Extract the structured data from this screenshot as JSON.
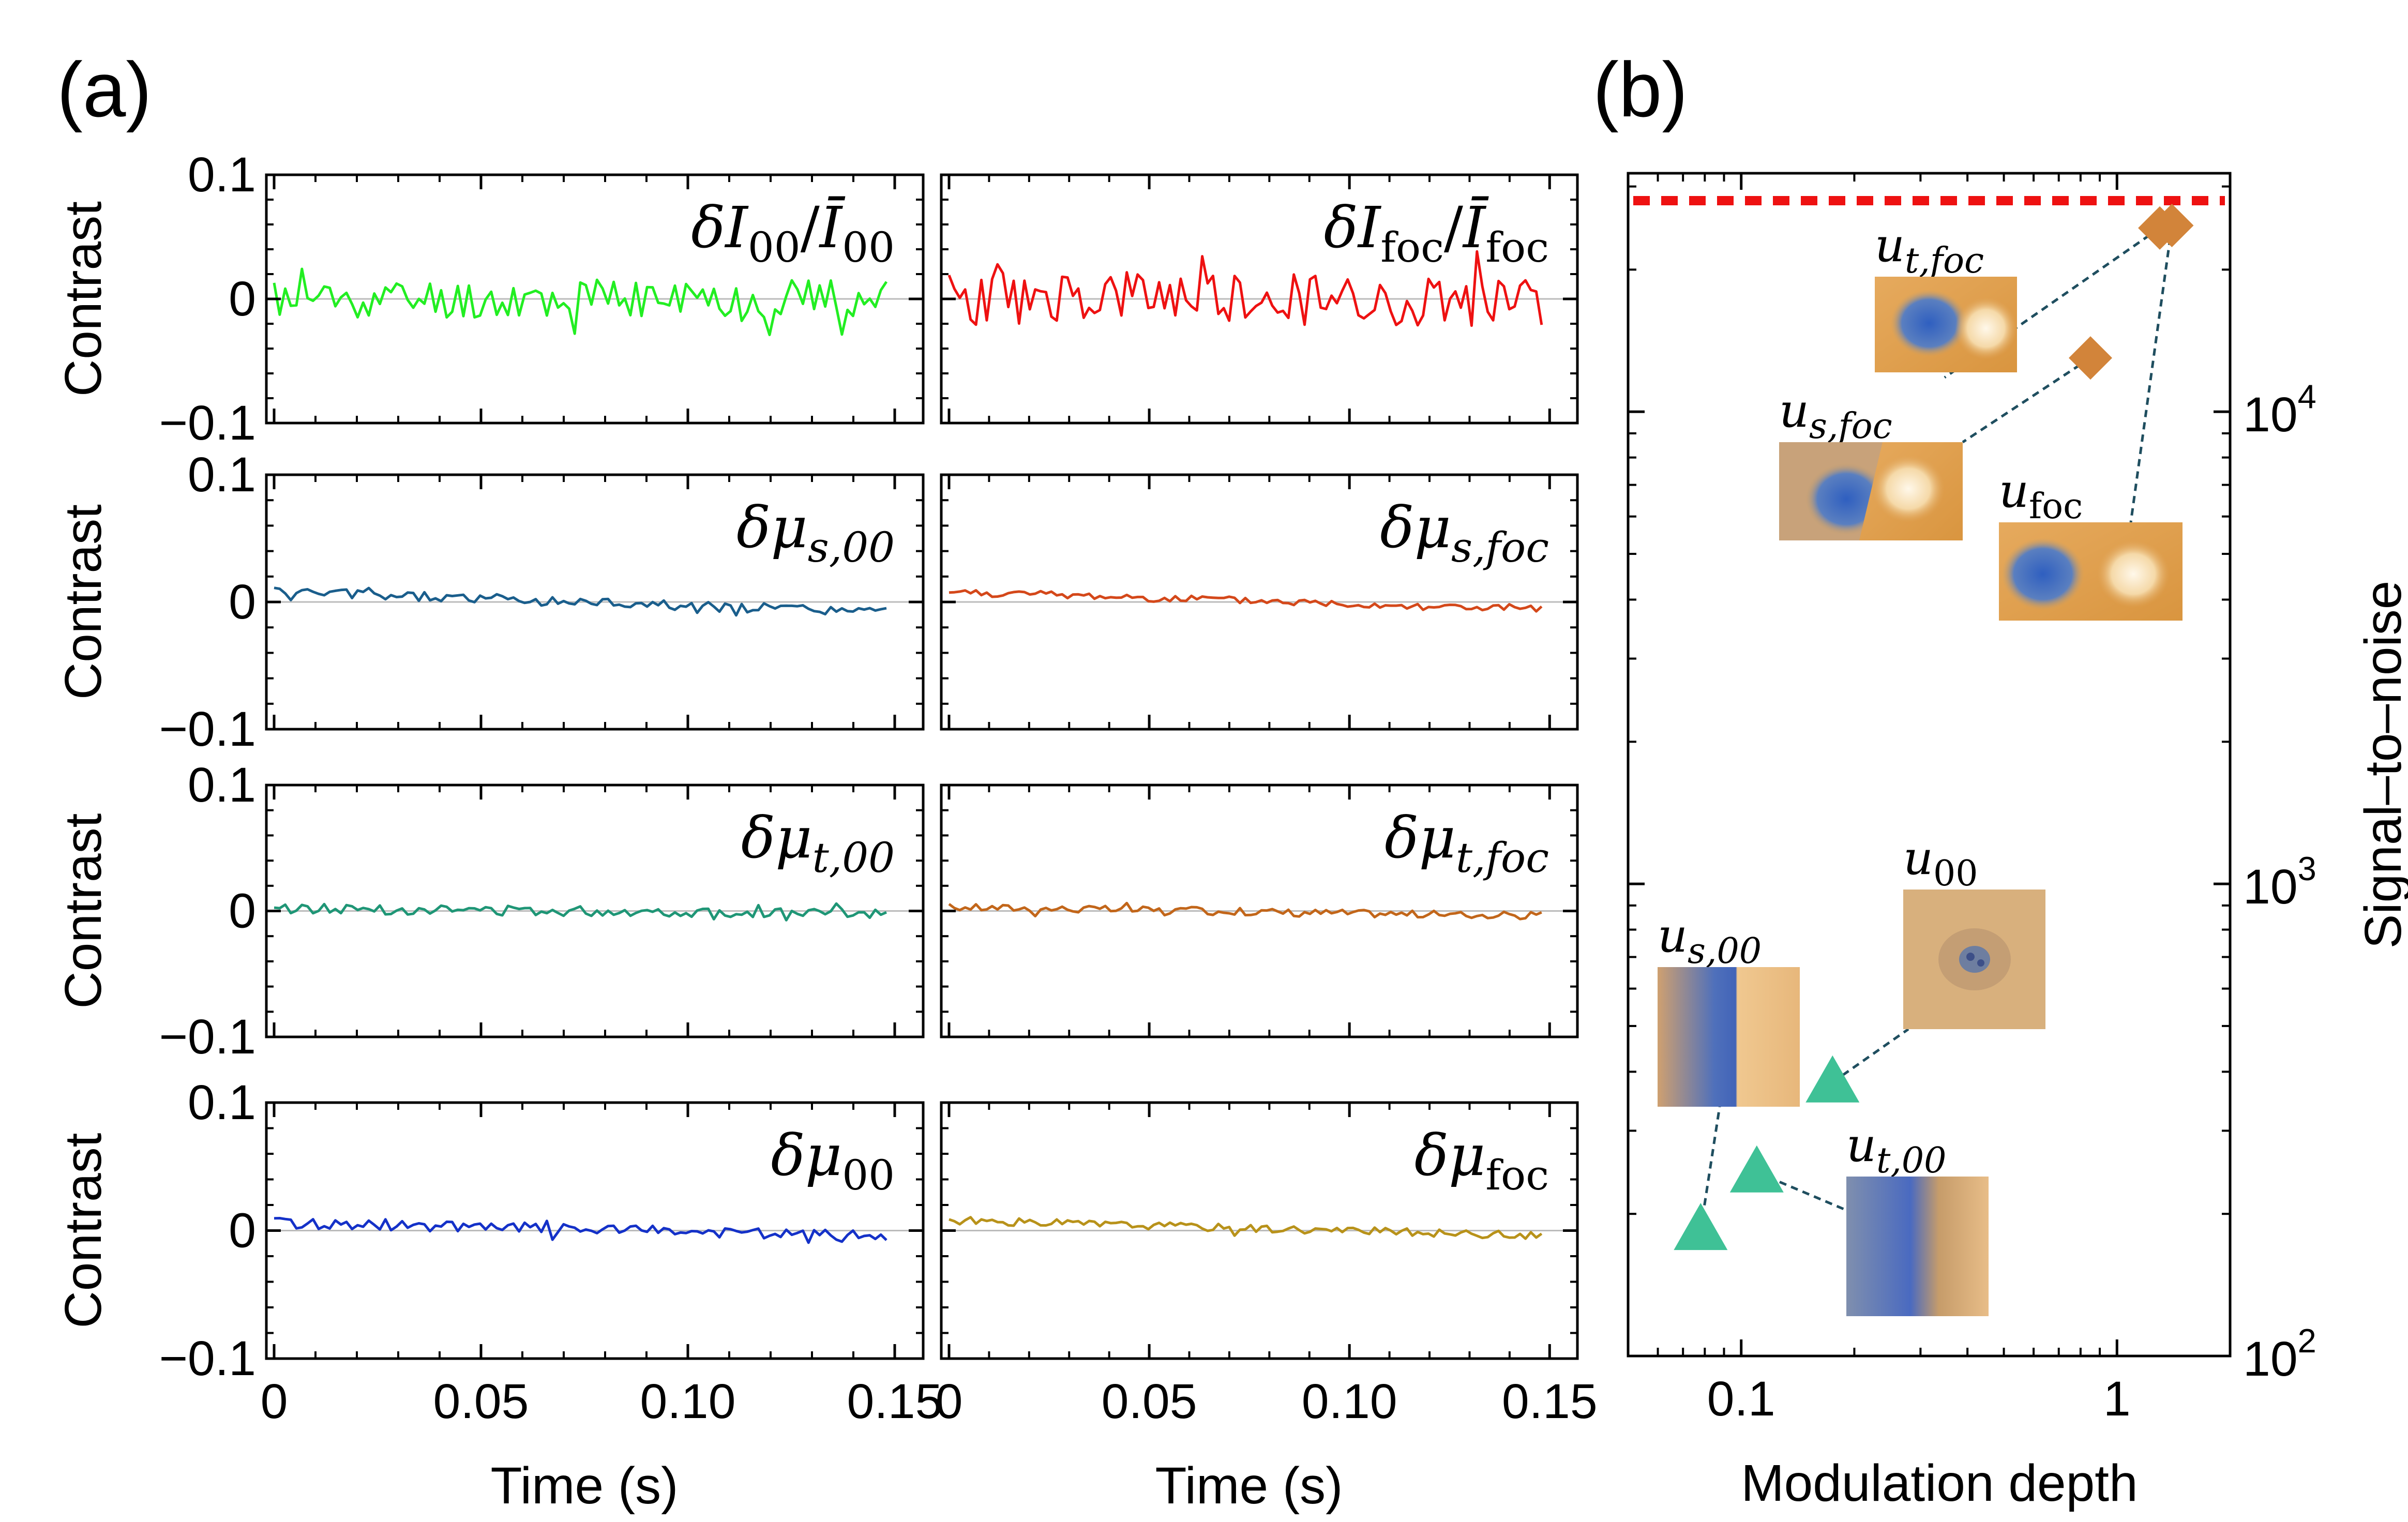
{
  "panel_labels": {
    "a": "(a)",
    "b": "(b)"
  },
  "chart_data": [
    {
      "panel": "a",
      "type": "line",
      "title": "δI₀₀/Ī₀₀",
      "label_main": "δI",
      "label_sub": "00",
      "label_den": "Ī",
      "label_den_sub": "00",
      "color": "#22ee22",
      "xlim": [
        0,
        0.155
      ],
      "ylim": [
        -0.1,
        0.1
      ],
      "xticks": [
        "0",
        "0.05",
        "0.10",
        "0.15"
      ],
      "yticks": [
        "−0.1",
        "0",
        "0.1"
      ],
      "xlabel": "",
      "ylabel": "Contrast",
      "series": {
        "noise_amplitude": 0.016,
        "drift_start": 0.0,
        "drift_end": 0.0,
        "seed": 11
      }
    },
    {
      "panel": "a",
      "type": "line",
      "title": "δI_foc/Ī_foc",
      "label_main": "δI",
      "label_sub": "foc",
      "label_den": "Ī",
      "label_den_sub": "foc",
      "color": "#ee1111",
      "xlim": [
        0,
        0.155
      ],
      "ylim": [
        -0.1,
        0.1
      ],
      "xticks": [
        "0",
        "0.05",
        "0.10",
        "0.15"
      ],
      "yticks": [
        "",
        "",
        ""
      ],
      "xlabel": "",
      "ylabel": "",
      "series": {
        "noise_amplitude": 0.022,
        "drift_start": 0.0,
        "drift_end": 0.0,
        "seed": 23
      }
    },
    {
      "panel": "a",
      "type": "line",
      "title": "δμ_s,00",
      "label_main": "δμ",
      "label_sub": "s,00",
      "color": "#1a5e8c",
      "xlim": [
        0,
        0.155
      ],
      "ylim": [
        -0.1,
        0.1
      ],
      "xticks": [
        "0",
        "0.05",
        "0.10",
        "0.15"
      ],
      "yticks": [
        "−0.1",
        "0",
        "0.1"
      ],
      "xlabel": "",
      "ylabel": "Contrast",
      "series": {
        "noise_amplitude": 0.004,
        "drift_start": 0.008,
        "drift_end": -0.008,
        "seed": 5
      }
    },
    {
      "panel": "a",
      "type": "line",
      "title": "δμ_s,foc",
      "label_main": "δμ",
      "label_sub": "s,foc",
      "color": "#d4481a",
      "xlim": [
        0,
        0.155
      ],
      "ylim": [
        -0.1,
        0.1
      ],
      "xticks": [
        "0",
        "0.05",
        "0.10",
        "0.15"
      ],
      "yticks": [
        "",
        "",
        ""
      ],
      "xlabel": "",
      "ylabel": "",
      "series": {
        "noise_amplitude": 0.003,
        "drift_start": 0.008,
        "drift_end": -0.006,
        "seed": 8
      }
    },
    {
      "panel": "a",
      "type": "line",
      "title": "δμ_t,00",
      "label_main": "δμ",
      "label_sub": "t,00",
      "color": "#1f9676",
      "xlim": [
        0,
        0.155
      ],
      "ylim": [
        -0.1,
        0.1
      ],
      "xticks": [
        "0",
        "0.05",
        "0.10",
        "0.15"
      ],
      "yticks": [
        "−0.1",
        "0",
        "0.1"
      ],
      "xlabel": "",
      "ylabel": "Contrast",
      "series": {
        "noise_amplitude": 0.004,
        "drift_start": 0.002,
        "drift_end": -0.002,
        "seed": 13
      }
    },
    {
      "panel": "a",
      "type": "line",
      "title": "δμ_t,foc",
      "label_main": "δμ",
      "label_sub": "t,foc",
      "color": "#c2661a",
      "xlim": [
        0,
        0.155
      ],
      "ylim": [
        -0.1,
        0.1
      ],
      "xticks": [
        "0",
        "0.05",
        "0.10",
        "0.15"
      ],
      "yticks": [
        "",
        "",
        ""
      ],
      "xlabel": "",
      "ylabel": "",
      "series": {
        "noise_amplitude": 0.003,
        "drift_start": 0.003,
        "drift_end": -0.004,
        "seed": 17
      }
    },
    {
      "panel": "a",
      "type": "line",
      "title": "δμ₀₀",
      "label_main": "δμ",
      "label_sub": "00",
      "color": "#1431c8",
      "xlim": [
        0,
        0.155
      ],
      "ylim": [
        -0.1,
        0.1
      ],
      "xticks": [
        "0",
        "0.05",
        "0.10",
        "0.15"
      ],
      "yticks": [
        "−0.1",
        "0",
        "0.1"
      ],
      "xlabel": "Time (s)",
      "ylabel": "Contrast",
      "series": {
        "noise_amplitude": 0.004,
        "drift_start": 0.006,
        "drift_end": -0.004,
        "seed": 29
      }
    },
    {
      "panel": "a",
      "type": "line",
      "title": "δμ_foc",
      "label_main": "δμ",
      "label_sub": "foc",
      "color": "#b8921a",
      "xlim": [
        0,
        0.155
      ],
      "ylim": [
        -0.1,
        0.1
      ],
      "xticks": [
        "0",
        "0.05",
        "0.10",
        "0.15"
      ],
      "yticks": [
        "",
        "",
        ""
      ],
      "xlabel": "Time (s)",
      "ylabel": "",
      "series": {
        "noise_amplitude": 0.003,
        "drift_start": 0.008,
        "drift_end": -0.004,
        "seed": 31
      }
    },
    {
      "panel": "b",
      "type": "scatter",
      "xlabel": "Modulation depth",
      "ylabel": "Signal–to–noise",
      "xscale": "log",
      "yscale": "log",
      "xlim": [
        0.05,
        2.0
      ],
      "ylim": [
        100,
        32000
      ],
      "xticks": [
        "0.1",
        "1"
      ],
      "yticks": [
        {
          "base": "10",
          "exp": "2"
        },
        {
          "base": "10",
          "exp": "3"
        },
        {
          "base": "10",
          "exp": "4"
        }
      ],
      "reference_line": {
        "y": 28000,
        "color": "#ee1111",
        "style": "dashed"
      },
      "series": [
        {
          "name": "foc",
          "marker": "diamond",
          "color": "#d2843a",
          "points": [
            {
              "label": "u_t,foc",
              "x": 1.3,
              "y": 24500,
              "sub": "t,foc"
            },
            {
              "label": "u_foc",
              "x": 1.4,
              "y": 24800,
              "sub": "foc"
            },
            {
              "label": "u_s,foc",
              "x": 0.85,
              "y": 13000,
              "sub": "s,foc"
            }
          ]
        },
        {
          "name": "00",
          "marker": "triangle",
          "color": "#3fc196",
          "points": [
            {
              "label": "u_s,00",
              "x": 0.078,
              "y": 185,
              "sub": "s,00"
            },
            {
              "label": "u_t,00",
              "x": 0.11,
              "y": 245,
              "sub": "t,00"
            },
            {
              "label": "u_00",
              "x": 0.175,
              "y": 380,
              "sub": "00"
            }
          ]
        }
      ],
      "reference_line_color": "#ee1111",
      "leader_color": "#1f4e5f"
    }
  ]
}
